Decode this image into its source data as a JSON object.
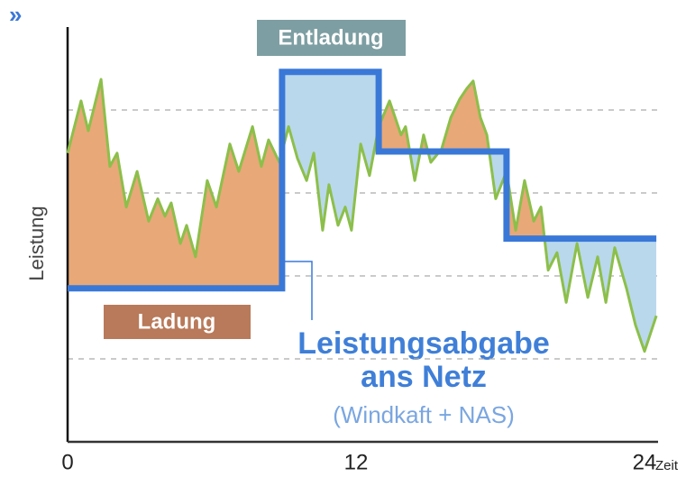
{
  "nav_icon": "»",
  "chart_data": {
    "type": "line",
    "ylabel": "Leistung",
    "xlabel": "Zeit",
    "xlim": [
      0,
      24
    ],
    "xticks": [
      0,
      12,
      24
    ],
    "ylim": [
      0,
      5
    ],
    "grid_lines": [
      1,
      2,
      3,
      4
    ],
    "annotations": [
      "Entladung",
      "Ladung"
    ],
    "series": [
      {
        "color": "#8cbf4a",
        "x": [
          0,
          0.56,
          0.86,
          1.39,
          1.76,
          2.06,
          2.44,
          2.89,
          3.37,
          3.75,
          4.05,
          4.31,
          4.69,
          4.95,
          5.32,
          5.81,
          6.19,
          6.75,
          7.12,
          7.69,
          8.06,
          8.36,
          8.81,
          9.19,
          9.56,
          9.94,
          10.24,
          10.61,
          10.87,
          11.25,
          11.55,
          11.81,
          12.19,
          12.56,
          12.94,
          13.39,
          13.87,
          14.06,
          14.44,
          14.81,
          15.11,
          15.56,
          15.94,
          16.31,
          16.61,
          16.87,
          17.17,
          17.44,
          17.81,
          18.26,
          18.64,
          19.01,
          19.39,
          19.69,
          19.99,
          20.36,
          20.74,
          21.19,
          21.64,
          22.05,
          22.39,
          22.76,
          23.25,
          23.62,
          24,
          24.49
        ],
        "values": [
          3.48,
          4.11,
          3.75,
          4.37,
          3.32,
          3.48,
          2.83,
          3.26,
          2.66,
          2.93,
          2.72,
          2.88,
          2.39,
          2.61,
          2.23,
          3.15,
          2.83,
          3.59,
          3.26,
          3.8,
          3.32,
          3.64,
          3.37,
          3.8,
          3.42,
          3.15,
          3.48,
          2.55,
          3.1,
          2.61,
          2.83,
          2.55,
          3.59,
          3.21,
          3.8,
          4.11,
          3.7,
          3.8,
          3.15,
          3.7,
          3.37,
          3.53,
          3.91,
          4.13,
          4.26,
          4.35,
          3.91,
          3.7,
          2.93,
          3.26,
          2.55,
          3.15,
          2.66,
          2.83,
          2.07,
          2.28,
          1.68,
          2.39,
          1.74,
          2.23,
          1.68,
          2.34,
          1.85,
          1.41,
          1.09,
          1.52
        ]
      },
      {
        "name_lines": [
          "Leistungsabgabe",
          "ans Netz"
        ],
        "note": "(Windkaft + NAS)",
        "color": "#3a78d8",
        "x": [
          0,
          8.92,
          8.92,
          12.94,
          12.94,
          18.26,
          18.26,
          24.49
        ],
        "values": [
          1.85,
          1.85,
          4.46,
          4.46,
          3.5,
          3.5,
          2.45,
          2.45
        ]
      }
    ]
  }
}
